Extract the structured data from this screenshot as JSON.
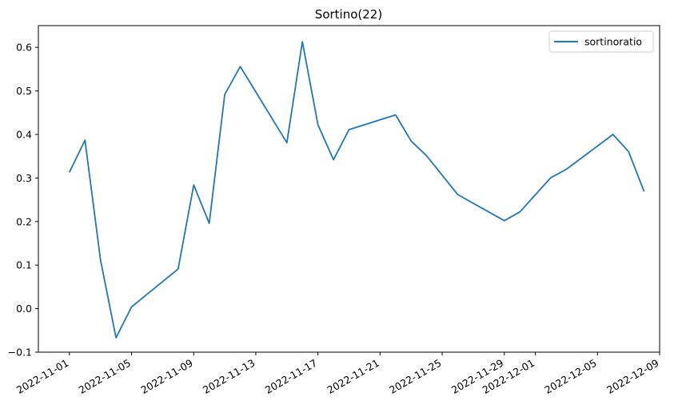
{
  "chart_data": {
    "type": "line",
    "title": "Sortino(22)",
    "xlabel": "",
    "ylabel": "",
    "x_axis_type": "date",
    "xlim": [
      "2022-10-30",
      "2022-12-09"
    ],
    "ylim": [
      -0.1,
      0.65
    ],
    "y_ticks": [
      -0.1,
      0.0,
      0.1,
      0.2,
      0.3,
      0.4,
      0.5,
      0.6
    ],
    "y_tick_labels": [
      "−0.1",
      "0.0",
      "0.1",
      "0.2",
      "0.3",
      "0.4",
      "0.5",
      "0.6"
    ],
    "x_ticks": [
      "2022-11-01",
      "2022-11-05",
      "2022-11-09",
      "2022-11-13",
      "2022-11-17",
      "2022-11-21",
      "2022-11-25",
      "2022-11-29",
      "2022-12-01",
      "2022-12-05",
      "2022-12-09"
    ],
    "grid": false,
    "legend_position": "top-right",
    "series": [
      {
        "name": "sortinoratio",
        "color": "#1f77b4",
        "x": [
          "2022-11-01",
          "2022-11-02",
          "2022-11-03",
          "2022-11-04",
          "2022-11-05",
          "2022-11-08",
          "2022-11-09",
          "2022-11-10",
          "2022-11-11",
          "2022-11-12",
          "2022-11-15",
          "2022-11-16",
          "2022-11-17",
          "2022-11-18",
          "2022-11-19",
          "2022-11-22",
          "2022-11-23",
          "2022-11-24",
          "2022-11-26",
          "2022-11-29",
          "2022-11-30",
          "2022-12-02",
          "2022-12-03",
          "2022-12-06",
          "2022-12-07",
          "2022-12-08"
        ],
        "values": [
          0.313,
          0.387,
          0.112,
          -0.067,
          0.004,
          0.091,
          0.284,
          0.196,
          0.492,
          0.556,
          0.381,
          0.613,
          0.422,
          0.342,
          0.411,
          0.445,
          0.385,
          0.351,
          0.262,
          0.202,
          0.222,
          0.301,
          0.32,
          0.4,
          0.361,
          0.269
        ]
      }
    ]
  }
}
